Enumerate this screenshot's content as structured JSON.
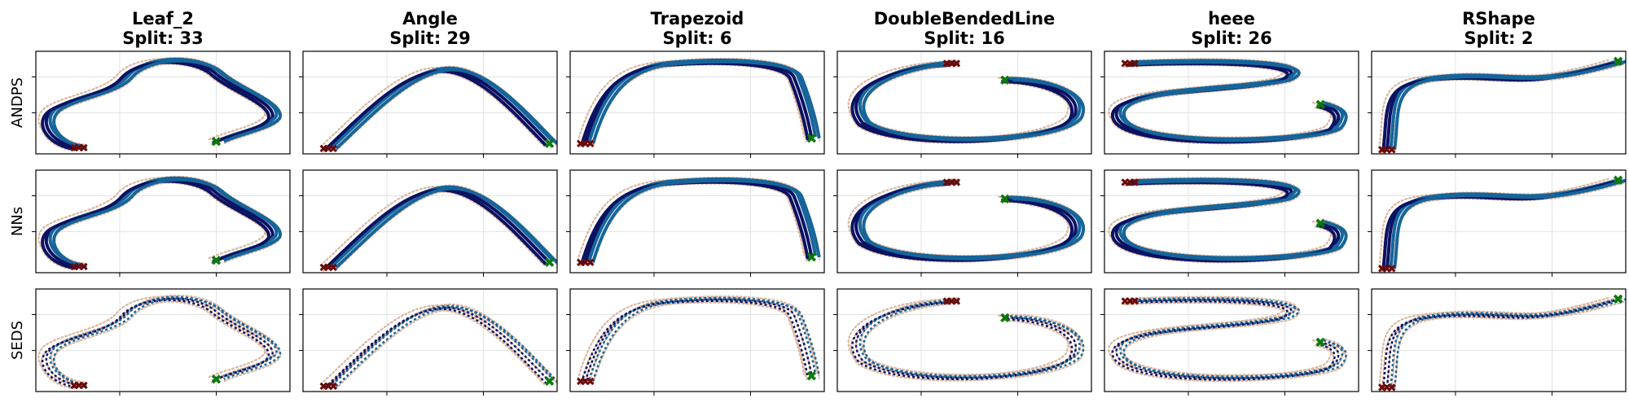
{
  "chart_data": {
    "type": "scatter",
    "layout": "3 rows x 6 columns grid of trajectory panels",
    "grid": true,
    "colors": {
      "demonstrations": "#dcb7a0",
      "trajectory_dark": "#0b1262",
      "trajectory_mid": "#16659a",
      "start_marker": "#6b0a0a",
      "goal_marker": "#0b7a0b"
    },
    "columns": [
      {
        "name": "Leaf_2",
        "split": "Split: 33"
      },
      {
        "name": "Angle",
        "split": "Split: 29"
      },
      {
        "name": "Trapezoid",
        "split": "Split: 6"
      },
      {
        "name": "DoubleBendedLine",
        "split": "Split: 16"
      },
      {
        "name": "heee",
        "split": "Split: 26"
      },
      {
        "name": "RShape",
        "split": "Split: 2"
      }
    ],
    "rows": [
      "ANDPS",
      "NNs",
      "SEDS"
    ],
    "ylim": [
      0,
      1
    ],
    "xlim": [
      0,
      1
    ],
    "markers": [
      {
        "column": "Leaf_2",
        "start": [
          0.17,
          0.06
        ],
        "goal": [
          0.71,
          0.12
        ]
      },
      {
        "column": "Angle",
        "start": [
          0.1,
          0.05
        ],
        "goal": [
          0.97,
          0.1
        ]
      },
      {
        "column": "Trapezoid",
        "start": [
          0.06,
          0.1
        ],
        "goal": [
          0.95,
          0.15
        ]
      },
      {
        "column": "DoubleBendedLine",
        "start": [
          0.45,
          0.88
        ],
        "goal": [
          0.66,
          0.72
        ]
      },
      {
        "column": "heee",
        "start": [
          0.1,
          0.88
        ],
        "goal": [
          0.85,
          0.48
        ]
      },
      {
        "column": "RShape",
        "start": [
          0.06,
          0.04
        ],
        "goal": [
          0.97,
          0.9
        ]
      }
    ]
  }
}
